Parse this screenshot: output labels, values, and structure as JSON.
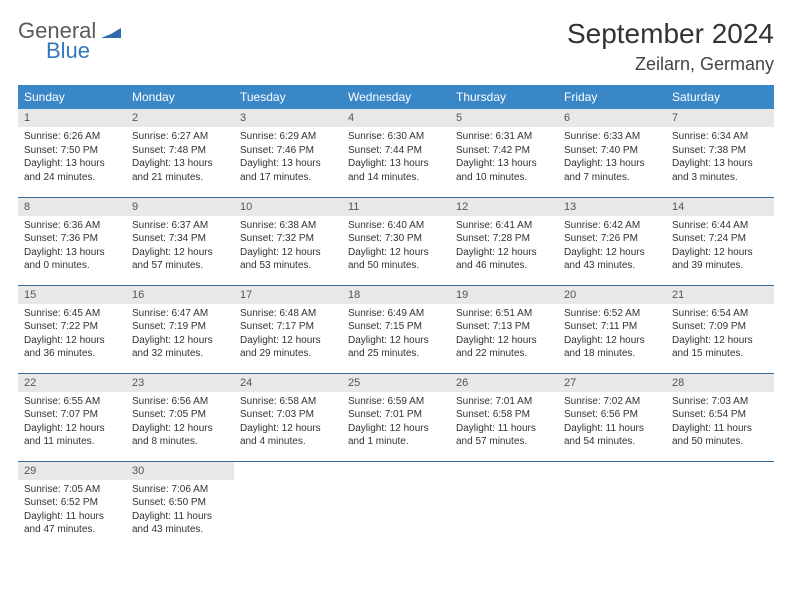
{
  "logo": {
    "word1": "General",
    "word2": "Blue",
    "markColor": "#2f6aa8"
  },
  "header": {
    "monthTitle": "September 2024",
    "location": "Zeilarn, Germany"
  },
  "style": {
    "headerBg": "#3a87c8",
    "headerFg": "#ffffff",
    "dayNumBg": "#e8e8e8",
    "rowBorder": "#3a6a95",
    "textColor": "#333333"
  },
  "weekdays": [
    "Sunday",
    "Monday",
    "Tuesday",
    "Wednesday",
    "Thursday",
    "Friday",
    "Saturday"
  ],
  "days": [
    {
      "n": 1,
      "sr": "Sunrise: 6:26 AM",
      "ss": "Sunset: 7:50 PM",
      "d1": "Daylight: 13 hours",
      "d2": "and 24 minutes."
    },
    {
      "n": 2,
      "sr": "Sunrise: 6:27 AM",
      "ss": "Sunset: 7:48 PM",
      "d1": "Daylight: 13 hours",
      "d2": "and 21 minutes."
    },
    {
      "n": 3,
      "sr": "Sunrise: 6:29 AM",
      "ss": "Sunset: 7:46 PM",
      "d1": "Daylight: 13 hours",
      "d2": "and 17 minutes."
    },
    {
      "n": 4,
      "sr": "Sunrise: 6:30 AM",
      "ss": "Sunset: 7:44 PM",
      "d1": "Daylight: 13 hours",
      "d2": "and 14 minutes."
    },
    {
      "n": 5,
      "sr": "Sunrise: 6:31 AM",
      "ss": "Sunset: 7:42 PM",
      "d1": "Daylight: 13 hours",
      "d2": "and 10 minutes."
    },
    {
      "n": 6,
      "sr": "Sunrise: 6:33 AM",
      "ss": "Sunset: 7:40 PM",
      "d1": "Daylight: 13 hours",
      "d2": "and 7 minutes."
    },
    {
      "n": 7,
      "sr": "Sunrise: 6:34 AM",
      "ss": "Sunset: 7:38 PM",
      "d1": "Daylight: 13 hours",
      "d2": "and 3 minutes."
    },
    {
      "n": 8,
      "sr": "Sunrise: 6:36 AM",
      "ss": "Sunset: 7:36 PM",
      "d1": "Daylight: 13 hours",
      "d2": "and 0 minutes."
    },
    {
      "n": 9,
      "sr": "Sunrise: 6:37 AM",
      "ss": "Sunset: 7:34 PM",
      "d1": "Daylight: 12 hours",
      "d2": "and 57 minutes."
    },
    {
      "n": 10,
      "sr": "Sunrise: 6:38 AM",
      "ss": "Sunset: 7:32 PM",
      "d1": "Daylight: 12 hours",
      "d2": "and 53 minutes."
    },
    {
      "n": 11,
      "sr": "Sunrise: 6:40 AM",
      "ss": "Sunset: 7:30 PM",
      "d1": "Daylight: 12 hours",
      "d2": "and 50 minutes."
    },
    {
      "n": 12,
      "sr": "Sunrise: 6:41 AM",
      "ss": "Sunset: 7:28 PM",
      "d1": "Daylight: 12 hours",
      "d2": "and 46 minutes."
    },
    {
      "n": 13,
      "sr": "Sunrise: 6:42 AM",
      "ss": "Sunset: 7:26 PM",
      "d1": "Daylight: 12 hours",
      "d2": "and 43 minutes."
    },
    {
      "n": 14,
      "sr": "Sunrise: 6:44 AM",
      "ss": "Sunset: 7:24 PM",
      "d1": "Daylight: 12 hours",
      "d2": "and 39 minutes."
    },
    {
      "n": 15,
      "sr": "Sunrise: 6:45 AM",
      "ss": "Sunset: 7:22 PM",
      "d1": "Daylight: 12 hours",
      "d2": "and 36 minutes."
    },
    {
      "n": 16,
      "sr": "Sunrise: 6:47 AM",
      "ss": "Sunset: 7:19 PM",
      "d1": "Daylight: 12 hours",
      "d2": "and 32 minutes."
    },
    {
      "n": 17,
      "sr": "Sunrise: 6:48 AM",
      "ss": "Sunset: 7:17 PM",
      "d1": "Daylight: 12 hours",
      "d2": "and 29 minutes."
    },
    {
      "n": 18,
      "sr": "Sunrise: 6:49 AM",
      "ss": "Sunset: 7:15 PM",
      "d1": "Daylight: 12 hours",
      "d2": "and 25 minutes."
    },
    {
      "n": 19,
      "sr": "Sunrise: 6:51 AM",
      "ss": "Sunset: 7:13 PM",
      "d1": "Daylight: 12 hours",
      "d2": "and 22 minutes."
    },
    {
      "n": 20,
      "sr": "Sunrise: 6:52 AM",
      "ss": "Sunset: 7:11 PM",
      "d1": "Daylight: 12 hours",
      "d2": "and 18 minutes."
    },
    {
      "n": 21,
      "sr": "Sunrise: 6:54 AM",
      "ss": "Sunset: 7:09 PM",
      "d1": "Daylight: 12 hours",
      "d2": "and 15 minutes."
    },
    {
      "n": 22,
      "sr": "Sunrise: 6:55 AM",
      "ss": "Sunset: 7:07 PM",
      "d1": "Daylight: 12 hours",
      "d2": "and 11 minutes."
    },
    {
      "n": 23,
      "sr": "Sunrise: 6:56 AM",
      "ss": "Sunset: 7:05 PM",
      "d1": "Daylight: 12 hours",
      "d2": "and 8 minutes."
    },
    {
      "n": 24,
      "sr": "Sunrise: 6:58 AM",
      "ss": "Sunset: 7:03 PM",
      "d1": "Daylight: 12 hours",
      "d2": "and 4 minutes."
    },
    {
      "n": 25,
      "sr": "Sunrise: 6:59 AM",
      "ss": "Sunset: 7:01 PM",
      "d1": "Daylight: 12 hours",
      "d2": "and 1 minute."
    },
    {
      "n": 26,
      "sr": "Sunrise: 7:01 AM",
      "ss": "Sunset: 6:58 PM",
      "d1": "Daylight: 11 hours",
      "d2": "and 57 minutes."
    },
    {
      "n": 27,
      "sr": "Sunrise: 7:02 AM",
      "ss": "Sunset: 6:56 PM",
      "d1": "Daylight: 11 hours",
      "d2": "and 54 minutes."
    },
    {
      "n": 28,
      "sr": "Sunrise: 7:03 AM",
      "ss": "Sunset: 6:54 PM",
      "d1": "Daylight: 11 hours",
      "d2": "and 50 minutes."
    },
    {
      "n": 29,
      "sr": "Sunrise: 7:05 AM",
      "ss": "Sunset: 6:52 PM",
      "d1": "Daylight: 11 hours",
      "d2": "and 47 minutes."
    },
    {
      "n": 30,
      "sr": "Sunrise: 7:06 AM",
      "ss": "Sunset: 6:50 PM",
      "d1": "Daylight: 11 hours",
      "d2": "and 43 minutes."
    }
  ]
}
